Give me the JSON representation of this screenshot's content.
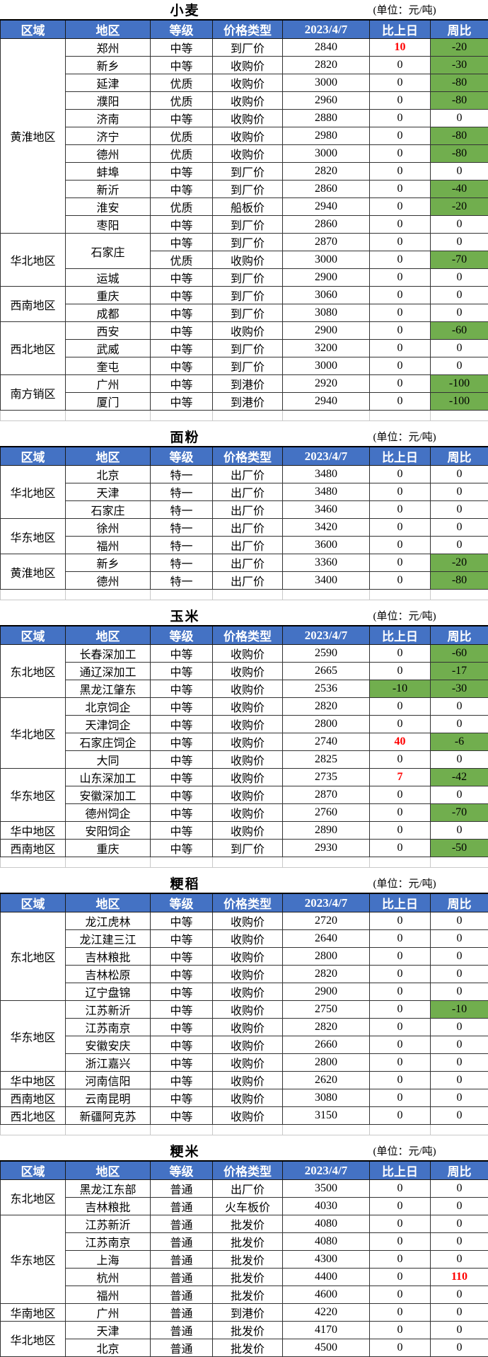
{
  "unit_label": "(单位：元/吨)",
  "columns": [
    "区域",
    "地区",
    "等级",
    "价格类型",
    "2023/4/7",
    "比上日",
    "周比"
  ],
  "colors": {
    "header_bg": "#4472C4",
    "highlight_green": "#71AE4E",
    "change_red": "#FF0000"
  },
  "sections": [
    {
      "title": "小麦",
      "groups": [
        {
          "region": "黄淮地区",
          "rows": [
            {
              "area": "郑州",
              "grade": "中等",
              "type": "到厂价",
              "price": "2840",
              "day": "10",
              "day_style": "red",
              "week": "-20",
              "week_style": "green"
            },
            {
              "area": "新乡",
              "grade": "中等",
              "type": "收购价",
              "price": "2820",
              "day": "0",
              "week": "-30",
              "week_style": "green"
            },
            {
              "area": "延津",
              "grade": "优质",
              "type": "收购价",
              "price": "3000",
              "day": "0",
              "week": "-80",
              "week_style": "green"
            },
            {
              "area": "濮阳",
              "grade": "优质",
              "type": "收购价",
              "price": "2960",
              "day": "0",
              "week": "-80",
              "week_style": "green"
            },
            {
              "area": "济南",
              "grade": "中等",
              "type": "收购价",
              "price": "2880",
              "day": "0",
              "week": "0"
            },
            {
              "area": "济宁",
              "grade": "优质",
              "type": "收购价",
              "price": "2980",
              "day": "0",
              "week": "-80",
              "week_style": "green"
            },
            {
              "area": "德州",
              "grade": "优质",
              "type": "收购价",
              "price": "3000",
              "day": "0",
              "week": "-80",
              "week_style": "green"
            },
            {
              "area": "蚌埠",
              "grade": "中等",
              "type": "到厂价",
              "price": "2820",
              "day": "0",
              "week": "0"
            },
            {
              "area": "新沂",
              "grade": "中等",
              "type": "到厂价",
              "price": "2860",
              "day": "0",
              "week": "-40",
              "week_style": "green"
            },
            {
              "area": "淮安",
              "grade": "优质",
              "type": "船板价",
              "price": "2940",
              "day": "0",
              "week": "-20",
              "week_style": "green"
            },
            {
              "area": "枣阳",
              "grade": "中等",
              "type": "到厂价",
              "price": "2860",
              "day": "0",
              "week": "0"
            }
          ]
        },
        {
          "region": "华北地区",
          "rows": [
            {
              "area": "石家庄",
              "area_rowspan": 2,
              "grade": "中等",
              "type": "到厂价",
              "price": "2870",
              "day": "0",
              "week": "0"
            },
            {
              "grade": "优质",
              "type": "收购价",
              "price": "3000",
              "day": "0",
              "week": "-70",
              "week_style": "green"
            },
            {
              "area": "运城",
              "grade": "中等",
              "type": "到厂价",
              "price": "2900",
              "day": "0",
              "week": "0"
            }
          ]
        },
        {
          "region": "西南地区",
          "rows": [
            {
              "area": "重庆",
              "grade": "中等",
              "type": "到厂价",
              "price": "3060",
              "day": "0",
              "week": "0"
            },
            {
              "area": "成都",
              "grade": "中等",
              "type": "到厂价",
              "price": "3080",
              "day": "0",
              "week": "0"
            }
          ]
        },
        {
          "region": "西北地区",
          "rows": [
            {
              "area": "西安",
              "grade": "中等",
              "type": "收购价",
              "price": "2900",
              "day": "0",
              "week": "-60",
              "week_style": "green"
            },
            {
              "area": "武威",
              "grade": "中等",
              "type": "到厂价",
              "price": "3200",
              "day": "0",
              "week": "0"
            },
            {
              "area": "奎屯",
              "grade": "中等",
              "type": "到厂价",
              "price": "3000",
              "day": "0",
              "week": "0"
            }
          ]
        },
        {
          "region": "南方销区",
          "rows": [
            {
              "area": "广州",
              "grade": "中等",
              "type": "到港价",
              "price": "2920",
              "day": "0",
              "week": "-100",
              "week_style": "green"
            },
            {
              "area": "厦门",
              "grade": "中等",
              "type": "到港价",
              "price": "2940",
              "day": "0",
              "week": "-100",
              "week_style": "green"
            }
          ]
        }
      ]
    },
    {
      "title": "面粉",
      "groups": [
        {
          "region": "华北地区",
          "rows": [
            {
              "area": "北京",
              "grade": "特一",
              "type": "出厂价",
              "price": "3480",
              "day": "0",
              "week": "0"
            },
            {
              "area": "天津",
              "grade": "特一",
              "type": "出厂价",
              "price": "3480",
              "day": "0",
              "week": "0"
            },
            {
              "area": "石家庄",
              "grade": "特一",
              "type": "出厂价",
              "price": "3460",
              "day": "0",
              "week": "0"
            }
          ]
        },
        {
          "region": "华东地区",
          "rows": [
            {
              "area": "徐州",
              "grade": "特一",
              "type": "出厂价",
              "price": "3420",
              "day": "0",
              "week": "0"
            },
            {
              "area": "福州",
              "grade": "特一",
              "type": "出厂价",
              "price": "3600",
              "day": "0",
              "week": "0"
            }
          ]
        },
        {
          "region": "黄淮地区",
          "rows": [
            {
              "area": "新乡",
              "grade": "特一",
              "type": "出厂价",
              "price": "3360",
              "day": "0",
              "week": "-20",
              "week_style": "green"
            },
            {
              "area": "德州",
              "grade": "特一",
              "type": "出厂价",
              "price": "3400",
              "day": "0",
              "week": "-80",
              "week_style": "green"
            }
          ]
        }
      ]
    },
    {
      "title": "玉米",
      "groups": [
        {
          "region": "东北地区",
          "rows": [
            {
              "area": "长春深加工",
              "grade": "中等",
              "type": "收购价",
              "price": "2590",
              "day": "0",
              "week": "-60",
              "week_style": "green"
            },
            {
              "area": "通辽深加工",
              "grade": "中等",
              "type": "收购价",
              "price": "2665",
              "day": "0",
              "week": "-17",
              "week_style": "green"
            },
            {
              "area": "黑龙江肇东",
              "grade": "中等",
              "type": "收购价",
              "price": "2536",
              "day": "-10",
              "day_style": "green",
              "week": "-30",
              "week_style": "green"
            }
          ]
        },
        {
          "region": "华北地区",
          "rows": [
            {
              "area": "北京饲企",
              "grade": "中等",
              "type": "收购价",
              "price": "2820",
              "day": "0",
              "week": "0"
            },
            {
              "area": "天津饲企",
              "grade": "中等",
              "type": "收购价",
              "price": "2800",
              "day": "0",
              "week": "0"
            },
            {
              "area": "石家庄饲企",
              "grade": "中等",
              "type": "收购价",
              "price": "2740",
              "day": "40",
              "day_style": "red",
              "week": "-6",
              "week_style": "green"
            },
            {
              "area": "大同",
              "grade": "中等",
              "type": "收购价",
              "price": "2825",
              "day": "0",
              "week": "0"
            }
          ]
        },
        {
          "region": "华东地区",
          "rows": [
            {
              "area": "山东深加工",
              "grade": "中等",
              "type": "收购价",
              "price": "2735",
              "day": "7",
              "day_style": "red",
              "week": "-42",
              "week_style": "green"
            },
            {
              "area": "安徽深加工",
              "grade": "中等",
              "type": "收购价",
              "price": "2870",
              "day": "0",
              "week": "0"
            },
            {
              "area": "德州饲企",
              "grade": "中等",
              "type": "收购价",
              "price": "2760",
              "day": "0",
              "week": "-70",
              "week_style": "green"
            }
          ]
        },
        {
          "region": "华中地区",
          "rows": [
            {
              "area": "安阳饲企",
              "grade": "中等",
              "type": "收购价",
              "price": "2890",
              "day": "0",
              "week": "0"
            }
          ]
        },
        {
          "region": "西南地区",
          "rows": [
            {
              "area": "重庆",
              "grade": "中等",
              "type": "到厂价",
              "price": "2930",
              "day": "0",
              "week": "-50",
              "week_style": "green"
            }
          ]
        }
      ]
    },
    {
      "title": "粳稻",
      "groups": [
        {
          "region": "东北地区",
          "rows": [
            {
              "area": "龙江虎林",
              "grade": "中等",
              "type": "收购价",
              "price": "2720",
              "day": "0",
              "week": "0"
            },
            {
              "area": "龙江建三江",
              "grade": "中等",
              "type": "收购价",
              "price": "2640",
              "day": "0",
              "week": "0"
            },
            {
              "area": "吉林粮批",
              "grade": "中等",
              "type": "收购价",
              "price": "2800",
              "day": "0",
              "week": "0"
            },
            {
              "area": "吉林松原",
              "grade": "中等",
              "type": "收购价",
              "price": "2820",
              "day": "0",
              "week": "0"
            },
            {
              "area": "辽宁盘锦",
              "grade": "中等",
              "type": "收购价",
              "price": "2900",
              "day": "0",
              "week": "0"
            }
          ]
        },
        {
          "region": "华东地区",
          "rows": [
            {
              "area": "江苏新沂",
              "grade": "中等",
              "type": "收购价",
              "price": "2750",
              "day": "0",
              "week": "-10",
              "week_style": "green"
            },
            {
              "area": "江苏南京",
              "grade": "中等",
              "type": "收购价",
              "price": "2820",
              "day": "0",
              "week": "0"
            },
            {
              "area": "安徽安庆",
              "grade": "中等",
              "type": "收购价",
              "price": "2660",
              "day": "0",
              "week": "0"
            },
            {
              "area": "浙江嘉兴",
              "grade": "中等",
              "type": "收购价",
              "price": "2800",
              "day": "0",
              "week": "0"
            }
          ]
        },
        {
          "region": "华中地区",
          "rows": [
            {
              "area": "河南信阳",
              "grade": "中等",
              "type": "收购价",
              "price": "2620",
              "day": "0",
              "week": "0"
            }
          ]
        },
        {
          "region": "西南地区",
          "rows": [
            {
              "area": "云南昆明",
              "grade": "中等",
              "type": "收购价",
              "price": "3080",
              "day": "0",
              "week": "0"
            }
          ]
        },
        {
          "region": "西北地区",
          "rows": [
            {
              "area": "新疆阿克苏",
              "grade": "中等",
              "type": "收购价",
              "price": "3150",
              "day": "0",
              "week": "0"
            }
          ]
        }
      ]
    },
    {
      "title": "粳米",
      "groups": [
        {
          "region": "东北地区",
          "rows": [
            {
              "area": "黑龙江东部",
              "grade": "普通",
              "type": "出厂价",
              "price": "3500",
              "day": "0",
              "week": "0"
            },
            {
              "area": "吉林粮批",
              "grade": "普通",
              "type": "火车板价",
              "price": "4030",
              "day": "0",
              "week": "0"
            }
          ]
        },
        {
          "region": "华东地区",
          "rows": [
            {
              "area": "江苏新沂",
              "grade": "普通",
              "type": "批发价",
              "price": "4080",
              "day": "0",
              "week": "0"
            },
            {
              "area": "江苏南京",
              "grade": "普通",
              "type": "批发价",
              "price": "4080",
              "day": "0",
              "week": "0"
            },
            {
              "area": "上海",
              "grade": "普通",
              "type": "批发价",
              "price": "4300",
              "day": "0",
              "week": "0"
            },
            {
              "area": "杭州",
              "grade": "普通",
              "type": "批发价",
              "price": "4400",
              "day": "0",
              "week": "110",
              "week_style": "red"
            },
            {
              "area": "福州",
              "grade": "普通",
              "type": "批发价",
              "price": "4600",
              "day": "0",
              "week": "0"
            }
          ]
        },
        {
          "region": "华南地区",
          "rows": [
            {
              "area": "广州",
              "grade": "普通",
              "type": "到港价",
              "price": "4220",
              "day": "0",
              "week": "0"
            }
          ]
        },
        {
          "region": "华北地区",
          "rows": [
            {
              "area": "天津",
              "grade": "普通",
              "type": "批发价",
              "price": "4170",
              "day": "0",
              "week": "0"
            }
          ]
        },
        {
          "region": "华北地区 ",
          "rows": [
            {
              "area": "北京",
              "grade": "普通",
              "type": "批发价",
              "price": "4500",
              "day": "0",
              "week": "0"
            }
          ]
        }
      ]
    }
  ]
}
